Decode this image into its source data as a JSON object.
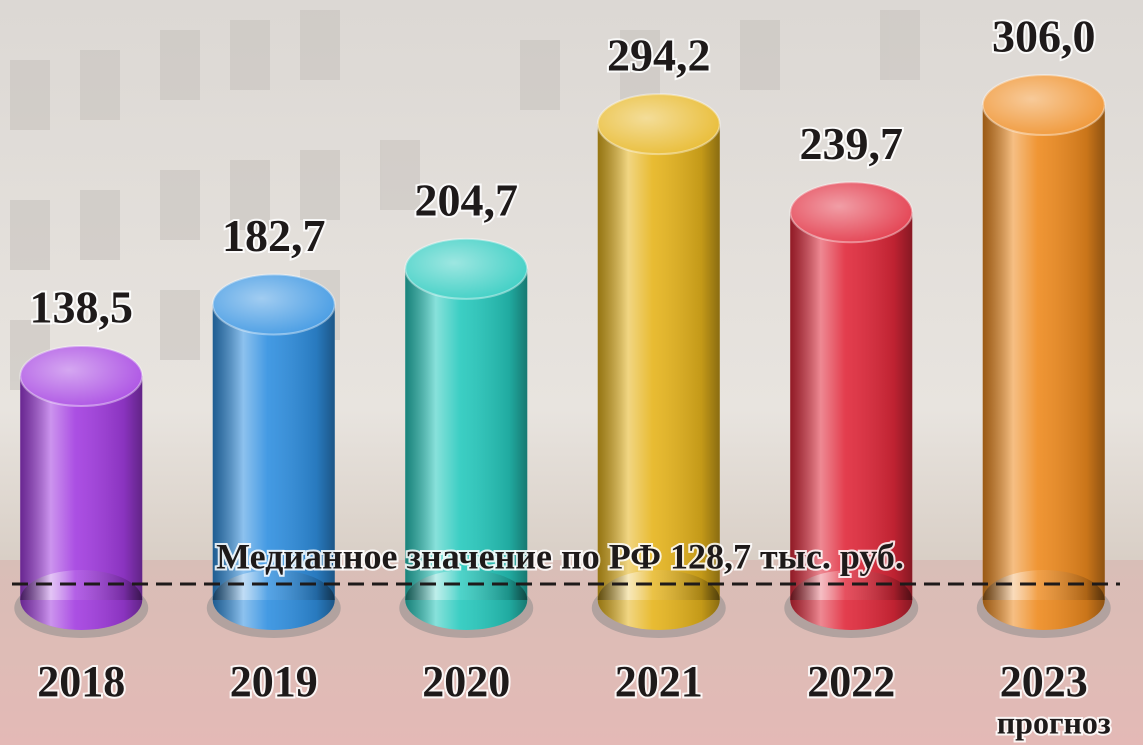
{
  "chart_data": {
    "type": "bar",
    "categories": [
      "2018",
      "2019",
      "2020",
      "2021",
      "2022",
      "2023"
    ],
    "values": [
      138.5,
      182.7,
      204.7,
      294.2,
      239.7,
      306.0
    ],
    "value_labels": [
      "138,5",
      "182,7",
      "204,7",
      "294,2",
      "239,7",
      "306,0"
    ],
    "colors": [
      "#a23ce0",
      "#2f8fe0",
      "#26c9bd",
      "#e6b41c",
      "#e0283a",
      "#ee8a1e"
    ],
    "category_note": {
      "category": "2023",
      "text": "прогноз"
    },
    "reference_line": {
      "value": 128.7,
      "label": "Медианное значение по РФ 128,7 тыс. руб."
    }
  }
}
